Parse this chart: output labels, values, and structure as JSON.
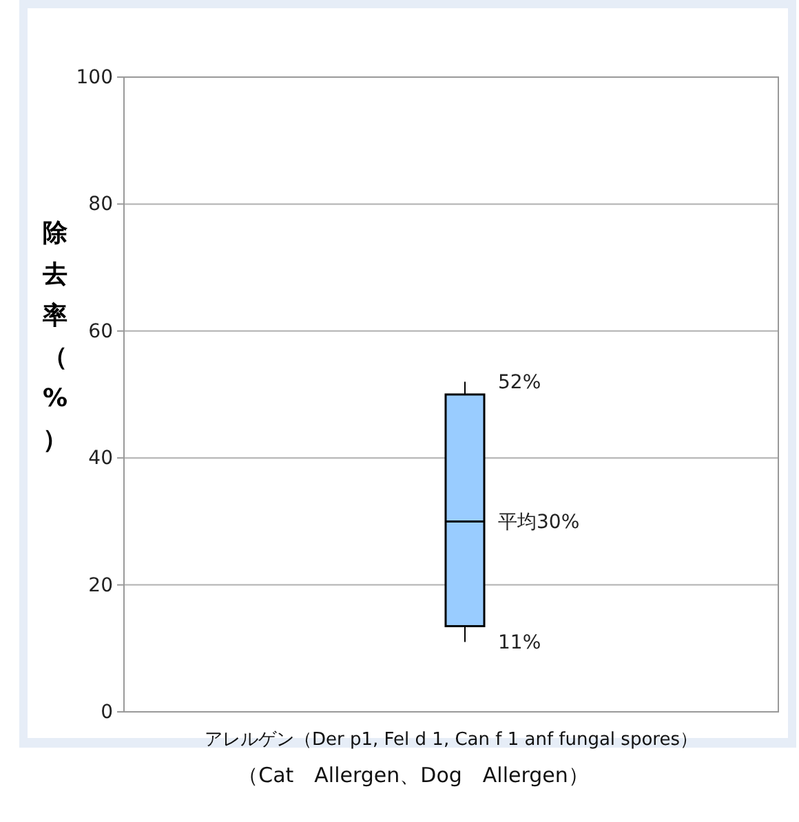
{
  "chart_data": {
    "type": "box",
    "categories": [
      "アレルゲン（Der p1, Fel d 1, Can f 1 anf fungal spores）"
    ],
    "boxes": [
      {
        "low": 11,
        "q1": 13.5,
        "median": 30,
        "q3": 50,
        "high": 52
      }
    ],
    "color": "#99ccff",
    "ylabel": "除去率（%）",
    "xlabel": "（Cat　Allergen、Dog　Allergen）",
    "ylim": [
      0,
      100
    ],
    "yticks": [
      0,
      20,
      40,
      60,
      80,
      100
    ],
    "grid": "y",
    "annotations": [
      "52%",
      "平均30%",
      "11%"
    ]
  }
}
